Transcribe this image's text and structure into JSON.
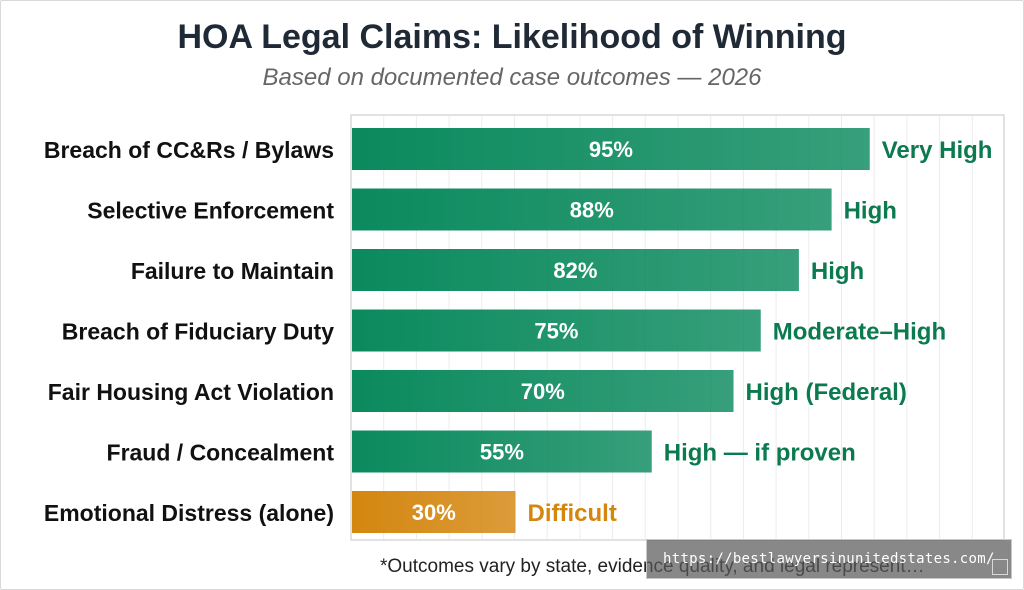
{
  "chart_data": {
    "type": "bar",
    "orientation": "horizontal",
    "title": "HOA Legal Claims: Likelihood of Winning",
    "subtitle": "Based on documented case outcomes — 2026",
    "categories": [
      "Breach of CC&Rs / Bylaws",
      "Selective Enforcement",
      "Failure to Maintain",
      "Breach of Fiduciary Duty",
      "Fair Housing Act Violation",
      "Fraud / Concealment",
      "Emotional Distress (alone)"
    ],
    "values": [
      95,
      88,
      82,
      75,
      70,
      55,
      30
    ],
    "value_labels": [
      "95%",
      "88%",
      "82%",
      "75%",
      "70%",
      "55%",
      "30%"
    ],
    "ratings": [
      "Very High",
      "High",
      "High",
      "Moderate–High",
      "High (Federal)",
      "High — if proven",
      "Difficult"
    ],
    "bar_colors": [
      "#0b8a5e",
      "#0b8a5e",
      "#0b8a5e",
      "#0b8a5e",
      "#0b8a5e",
      "#0b8a5e",
      "#d4860f"
    ],
    "rating_colors": [
      "#0b7a4f",
      "#0b7a4f",
      "#0b7a4f",
      "#0b7a4f",
      "#0b7a4f",
      "#0b7a4f",
      "#d4860f"
    ],
    "xlim": [
      0,
      100
    ],
    "grid": true,
    "xlabel": "",
    "ylabel": ""
  },
  "footnote": "*Outcomes vary by state, evidence quality, and legal represent…",
  "watermark": "https://bestlawyersinunitedstates.com/"
}
